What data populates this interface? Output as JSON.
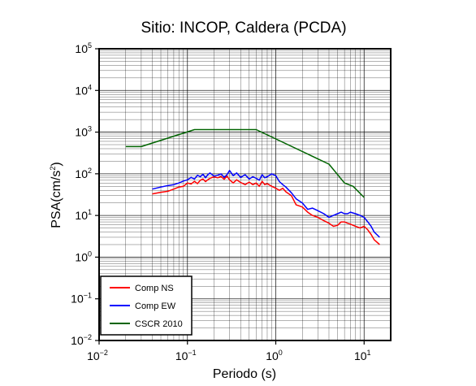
{
  "chart_data": {
    "type": "line",
    "title": "Sitio: INCOP, Caldera (PCDA)",
    "xlabel": "Periodo (s)",
    "ylabel": {
      "base": "PSA(cm/s",
      "sup": "2",
      "tail": ")"
    },
    "xscale": "log",
    "yscale": "log",
    "xlim": [
      0.01,
      20
    ],
    "ylim": [
      0.01,
      100000
    ],
    "grid": true,
    "legend_position": "bottom-left",
    "x_ticks": [
      {
        "value": 0.01,
        "base": "10",
        "exp": "−2"
      },
      {
        "value": 0.1,
        "base": "10",
        "exp": "−1"
      },
      {
        "value": 1,
        "base": "10",
        "exp": "0"
      },
      {
        "value": 10,
        "base": "10",
        "exp": "1"
      }
    ],
    "y_ticks": [
      {
        "value": 0.01,
        "base": "10",
        "exp": "−2"
      },
      {
        "value": 0.1,
        "base": "10",
        "exp": "−1"
      },
      {
        "value": 1,
        "base": "10",
        "exp": "0"
      },
      {
        "value": 10,
        "base": "10",
        "exp": "1"
      },
      {
        "value": 100,
        "base": "10",
        "exp": "2"
      },
      {
        "value": 1000,
        "base": "10",
        "exp": "3"
      },
      {
        "value": 10000,
        "base": "10",
        "exp": "4"
      },
      {
        "value": 100000,
        "base": "10",
        "exp": "5"
      }
    ],
    "series": [
      {
        "name": "Comp NS",
        "color": "#ff0000",
        "x": [
          0.04,
          0.05,
          0.06,
          0.07,
          0.08,
          0.09,
          0.1,
          0.11,
          0.12,
          0.13,
          0.14,
          0.15,
          0.16,
          0.17,
          0.18,
          0.2,
          0.22,
          0.24,
          0.26,
          0.28,
          0.3,
          0.33,
          0.36,
          0.4,
          0.45,
          0.5,
          0.55,
          0.6,
          0.65,
          0.7,
          0.75,
          0.8,
          0.9,
          1.0,
          1.1,
          1.2,
          1.3,
          1.5,
          1.7,
          2.0,
          2.3,
          2.6,
          3.0,
          3.5,
          4.0,
          4.5,
          5.0,
          5.5,
          6.0,
          6.5,
          7.0,
          8.0,
          9.0,
          10.0,
          11.0,
          12.0,
          13.0,
          15.0
        ],
        "y": [
          33,
          36,
          38,
          43,
          48,
          50,
          60,
          57,
          66,
          58,
          70,
          75,
          65,
          72,
          78,
          85,
          80,
          86,
          74,
          88,
          72,
          60,
          72,
          62,
          55,
          63,
          55,
          60,
          50,
          66,
          55,
          58,
          50,
          45,
          40,
          45,
          37,
          30,
          18,
          16,
          12,
          10,
          9,
          7.5,
          6.5,
          5.5,
          5.8,
          7.0,
          7.0,
          6.5,
          6.2,
          5.5,
          5.0,
          5.5,
          4.5,
          3.5,
          2.6,
          2.0
        ]
      },
      {
        "name": "Comp EW",
        "color": "#0000ff",
        "x": [
          0.04,
          0.05,
          0.06,
          0.07,
          0.08,
          0.09,
          0.1,
          0.11,
          0.12,
          0.13,
          0.14,
          0.15,
          0.16,
          0.17,
          0.18,
          0.2,
          0.22,
          0.24,
          0.26,
          0.28,
          0.3,
          0.33,
          0.36,
          0.4,
          0.45,
          0.5,
          0.55,
          0.6,
          0.65,
          0.7,
          0.75,
          0.8,
          0.9,
          1.0,
          1.1,
          1.2,
          1.3,
          1.5,
          1.7,
          2.0,
          2.3,
          2.6,
          3.0,
          3.5,
          4.0,
          4.5,
          5.0,
          5.5,
          6.0,
          6.5,
          7.0,
          8.0,
          9.0,
          10.0,
          11.0,
          12.0,
          13.0,
          15.0
        ],
        "y": [
          43,
          48,
          52,
          55,
          60,
          67,
          72,
          82,
          75,
          92,
          85,
          98,
          80,
          95,
          105,
          88,
          92,
          100,
          82,
          95,
          120,
          90,
          105,
          82,
          95,
          75,
          85,
          78,
          70,
          95,
          80,
          85,
          100,
          90,
          65,
          55,
          48,
          35,
          25,
          20,
          14,
          15,
          13,
          11,
          9,
          10,
          11,
          12,
          11,
          11,
          12,
          11,
          10,
          9,
          7,
          5.5,
          4.0,
          3.0
        ]
      },
      {
        "name": "CSCR 2010",
        "color": "#006400",
        "x": [
          0.02,
          0.03,
          0.12,
          0.6,
          4.0,
          6.0,
          7.5,
          10.0
        ],
        "y": [
          450,
          450,
          1150,
          1150,
          170,
          60,
          50,
          27
        ]
      }
    ]
  }
}
